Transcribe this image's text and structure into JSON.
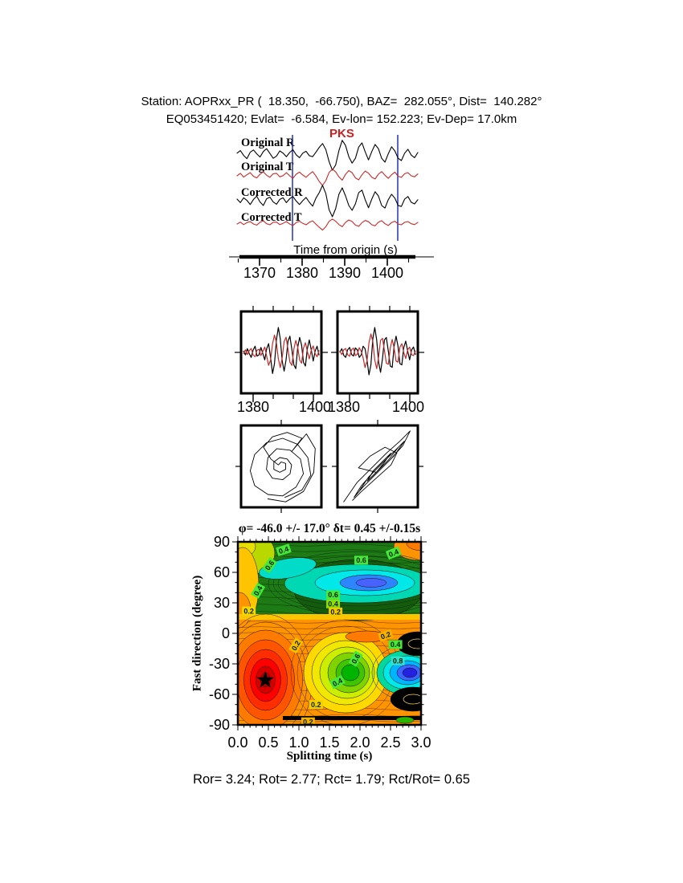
{
  "header": {
    "line1": "Station: AOPRxx_PR (  18.350,  -66.750), BAZ=  282.055°, Dist=  140.282°",
    "line2": "EQ053451420; Evlat=  -6.584, Ev-lon= 152.223; Ev-Dep= 17.0km"
  },
  "footer": {
    "text": "Ror= 3.24; Rot= 2.77; Rct= 1.79; Rct/Rot= 0.65"
  },
  "colors": {
    "trace_red": "#c62b2b",
    "trace_black": "#000000",
    "window_line_blue": "#2233bb",
    "phase_red": "#cc2020",
    "surface_orange": "#ff9400",
    "surface_green": "#1e7a14",
    "surface_cyan": "#00d8b4",
    "surface_blue": "#4762ff",
    "surface_red": "#e00000"
  },
  "chart_data": {
    "type": "multi-panel-seismic-splitting",
    "waveform_panel": {
      "phase_label": "PKS",
      "time_axis": {
        "label": "Time from origin (s)",
        "ticks": [
          1370,
          1380,
          1390,
          1400
        ],
        "minor_step": 5,
        "range": [
          1365,
          1408
        ]
      },
      "window_start_s": 1378,
      "window_end_s": 1402.5,
      "traces": [
        {
          "label": "Original R",
          "color": "#000000",
          "amp": 20,
          "values": [
            0.06,
            0.22,
            -0.08,
            -0.28,
            0.12,
            0.26,
            0.02,
            -0.18,
            0.16,
            0.34,
            0.04,
            -0.26,
            -0.12,
            0.2,
            0.06,
            -0.16,
            0.1,
            0.28,
            -0.04,
            -0.22,
            0.06,
            0.18,
            -0.1,
            -0.16,
            0.12,
            0.42,
            0.66,
            0.28,
            -0.46,
            -1.0,
            -0.68,
            0.22,
            0.86,
            0.54,
            -0.16,
            -0.56,
            -0.26,
            0.44,
            0.7,
            0.14,
            -0.36,
            0.16,
            0.6,
            0.34,
            -0.26,
            -0.5,
            0.02,
            0.46,
            0.2,
            -0.26,
            -0.4,
            0.06,
            0.3,
            -0.06,
            -0.22,
            0.1
          ]
        },
        {
          "label": "Original T",
          "color": "#c62b2b",
          "amp": 13,
          "values": [
            -0.08,
            0.16,
            -0.2,
            0.02,
            0.22,
            -0.12,
            -0.28,
            0.08,
            0.3,
            -0.02,
            -0.22,
            0.12,
            0.16,
            -0.18,
            -0.06,
            0.22,
            -0.08,
            -0.32,
            0.08,
            0.28,
            0.0,
            -0.22,
            0.08,
            0.32,
            -0.1,
            -0.62,
            -1.0,
            -0.54,
            0.24,
            0.56,
            0.3,
            -0.18,
            -0.5,
            0.06,
            0.42,
            0.22,
            -0.28,
            -0.46,
            0.02,
            0.38,
            0.18,
            -0.22,
            -0.38,
            0.08,
            0.32,
            -0.02,
            -0.32,
            0.02,
            0.28,
            -0.12,
            -0.22,
            0.12,
            0.22,
            -0.08,
            -0.18,
            0.1
          ]
        },
        {
          "label": "Corrected R",
          "color": "#000000",
          "amp": 20,
          "values": [
            0.1,
            -0.12,
            0.18,
            0.02,
            -0.24,
            0.08,
            0.28,
            -0.08,
            -0.3,
            0.12,
            0.22,
            -0.08,
            -0.22,
            0.08,
            0.18,
            -0.12,
            0.12,
            0.26,
            -0.02,
            -0.24,
            0.0,
            0.2,
            -0.1,
            -0.34,
            0.16,
            0.5,
            0.96,
            0.44,
            -0.56,
            -1.0,
            -0.5,
            0.4,
            0.8,
            0.3,
            -0.3,
            -0.6,
            -0.2,
            0.5,
            0.66,
            0.06,
            -0.44,
            0.1,
            0.56,
            0.3,
            -0.3,
            -0.46,
            0.06,
            0.4,
            0.16,
            -0.3,
            -0.36,
            0.1,
            0.26,
            -0.1,
            -0.2,
            0.06
          ]
        },
        {
          "label": "Corrected T",
          "color": "#c62b2b",
          "amp": 11,
          "values": [
            -0.1,
            0.12,
            -0.16,
            0.06,
            0.18,
            -0.1,
            -0.22,
            0.1,
            0.26,
            -0.06,
            -0.18,
            0.1,
            0.12,
            -0.16,
            -0.02,
            0.18,
            -0.1,
            -0.26,
            0.06,
            0.22,
            -0.02,
            -0.18,
            0.1,
            0.26,
            -0.12,
            -0.46,
            -0.78,
            -0.4,
            0.2,
            0.46,
            0.22,
            -0.16,
            -0.4,
            0.08,
            0.36,
            0.18,
            -0.22,
            -0.36,
            0.06,
            0.3,
            0.16,
            -0.18,
            -0.3,
            0.1,
            0.28,
            -0.06,
            -0.26,
            0.06,
            0.22,
            -0.1,
            -0.18,
            0.1,
            0.18,
            -0.06,
            -0.16,
            0.08
          ]
        }
      ]
    },
    "comparison_panels": {
      "xtick_labels": [
        "1380",
        "1400"
      ],
      "panels": [
        {
          "series": [
            {
              "color": "#000000",
              "amp": 31,
              "values": [
                0.05,
                -0.1,
                0.15,
                -0.05,
                -0.2,
                0.1,
                0.25,
                -0.15,
                -0.1,
                0.2,
                -0.05,
                -0.3,
                0.15,
                0.35,
                -0.2,
                -0.85,
                -0.45,
                0.5,
                1.0,
                0.55,
                -0.35,
                -0.75,
                -0.3,
                0.45,
                0.65,
                0.1,
                -0.5,
                -0.65,
                0.2,
                0.6,
                0.3,
                -0.4,
                -0.55,
                0.15,
                0.5,
                0.1,
                -0.35,
                0.05,
                0.25,
                -0.1
              ]
            },
            {
              "color": "#c62b2b",
              "amp": 27,
              "values": [
                -0.05,
                0.12,
                -0.1,
                0.08,
                0.18,
                -0.12,
                -0.2,
                0.1,
                0.15,
                -0.15,
                0.05,
                0.25,
                -0.18,
                -0.6,
                -0.35,
                0.4,
                0.8,
                0.45,
                -0.3,
                -0.7,
                -0.25,
                0.5,
                0.7,
                0.15,
                -0.45,
                -0.6,
                0.15,
                0.55,
                0.25,
                -0.35,
                -0.5,
                0.2,
                0.45,
                0.05,
                -0.3,
                0.1,
                0.3,
                -0.05,
                -0.2,
                0.08
              ]
            }
          ]
        },
        {
          "series": [
            {
              "color": "#000000",
              "amp": 31,
              "values": [
                0.02,
                0.15,
                -0.12,
                -0.2,
                0.1,
                0.2,
                -0.08,
                -0.15,
                0.18,
                0.1,
                -0.2,
                -0.1,
                0.25,
                0.15,
                -0.3,
                -0.9,
                -0.5,
                0.55,
                1.0,
                0.5,
                -0.4,
                -0.8,
                -0.25,
                0.5,
                0.6,
                0.05,
                -0.55,
                -0.6,
                0.25,
                0.65,
                0.25,
                -0.45,
                -0.5,
                0.2,
                0.45,
                0.05,
                -0.3,
                0.1,
                0.22,
                -0.08
              ]
            },
            {
              "color": "#c62b2b",
              "amp": 27,
              "values": [
                0.05,
                -0.1,
                0.12,
                0.18,
                -0.1,
                -0.18,
                0.12,
                0.2,
                -0.15,
                -0.08,
                0.22,
                0.05,
                -0.25,
                -0.7,
                -0.4,
                0.45,
                0.85,
                0.5,
                -0.35,
                -0.75,
                -0.2,
                0.55,
                0.65,
                0.1,
                -0.5,
                -0.55,
                0.2,
                0.6,
                0.2,
                -0.4,
                -0.45,
                0.25,
                0.4,
                0.0,
                -0.28,
                0.12,
                0.25,
                -0.1,
                -0.15,
                0.06
              ]
            }
          ]
        }
      ]
    },
    "particle_motion_panels": [
      {
        "path": [
          [
            5,
            -42
          ],
          [
            28,
            -32
          ],
          [
            40,
            -12
          ],
          [
            36,
            12
          ],
          [
            22,
            30
          ],
          [
            2,
            38
          ],
          [
            -20,
            32
          ],
          [
            -36,
            16
          ],
          [
            -42,
            -6
          ],
          [
            -36,
            -26
          ],
          [
            -18,
            -38
          ],
          [
            2,
            -40
          ],
          [
            20,
            -28
          ],
          [
            30,
            -10
          ],
          [
            26,
            10
          ],
          [
            12,
            22
          ],
          [
            -6,
            24
          ],
          [
            -18,
            12
          ],
          [
            -20,
            -4
          ],
          [
            -12,
            -16
          ],
          [
            2,
            -18
          ],
          [
            12,
            -10
          ],
          [
            14,
            2
          ],
          [
            8,
            10
          ],
          [
            -2,
            12
          ],
          [
            -10,
            6
          ],
          [
            -10,
            -4
          ],
          [
            -2,
            -8
          ],
          [
            6,
            -4
          ],
          [
            6,
            4
          ],
          [
            0,
            6
          ],
          [
            -4,
            2
          ],
          [
            -14,
            10
          ],
          [
            -24,
            26
          ],
          [
            -12,
            40
          ],
          [
            8,
            46
          ],
          [
            28,
            38
          ],
          [
            14,
            20
          ],
          [
            34,
            44
          ],
          [
            46,
            24
          ],
          [
            44,
            -8
          ],
          [
            30,
            -34
          ],
          [
            6,
            -48
          ],
          [
            -18,
            -44
          ]
        ]
      },
      {
        "path": [
          [
            -46,
            -48
          ],
          [
            -28,
            -22
          ],
          [
            -8,
            -2
          ],
          [
            12,
            18
          ],
          [
            30,
            34
          ],
          [
            44,
            48
          ],
          [
            34,
            28
          ],
          [
            16,
            8
          ],
          [
            -4,
            -12
          ],
          [
            -20,
            -28
          ],
          [
            -32,
            -42
          ],
          [
            -22,
            -26
          ],
          [
            -6,
            -8
          ],
          [
            10,
            8
          ],
          [
            24,
            22
          ],
          [
            36,
            34
          ],
          [
            22,
            14
          ],
          [
            6,
            -2
          ],
          [
            -10,
            -18
          ],
          [
            -24,
            -32
          ],
          [
            -12,
            -14
          ],
          [
            2,
            0
          ],
          [
            16,
            14
          ],
          [
            28,
            26
          ],
          [
            14,
            8
          ],
          [
            0,
            -6
          ],
          [
            -14,
            -20
          ],
          [
            -6,
            -6
          ],
          [
            6,
            6
          ],
          [
            18,
            18
          ],
          [
            8,
            4
          ],
          [
            -2,
            -8
          ],
          [
            -26,
            -2
          ],
          [
            -10,
            14
          ],
          [
            10,
            26
          ],
          [
            26,
            18
          ],
          [
            18,
            2
          ],
          [
            -2,
            -16
          ],
          [
            -22,
            -34
          ],
          [
            -34,
            -46
          ]
        ]
      }
    ],
    "error_surface": {
      "title": "φ= -46.0 +/- 17.0° δt= 0.45 +/-0.15s",
      "xlabel": "Splitting time (s)",
      "ylabel": "Fast direction (degree)",
      "xlim": [
        0,
        3
      ],
      "ylim": [
        -90,
        90
      ],
      "xticks": [
        0.0,
        0.5,
        1.0,
        1.5,
        2.0,
        2.5,
        3.0
      ],
      "yticks": [
        90,
        60,
        30,
        0,
        -30,
        -60,
        -90
      ],
      "best": {
        "phi_deg": -46.0,
        "phi_err_deg": 17.0,
        "dt_s": 0.45,
        "dt_err_s": 0.15
      },
      "star": {
        "t": 0.45,
        "deg": -46
      },
      "minima": [
        {
          "t": 0.45,
          "deg": -46,
          "kind": "best-fit (red, starred)"
        },
        {
          "t": 2.1,
          "deg": 52,
          "kind": "secondary (blue)"
        },
        {
          "t": 2.75,
          "deg": -38,
          "kind": "secondary (blue)"
        }
      ],
      "contour_labels": [
        {
          "v": "0.4",
          "t": 0.75,
          "deg": 82,
          "rot": -18,
          "bg": "#46e83c"
        },
        {
          "v": "0.6",
          "t": 0.52,
          "deg": 67,
          "rot": -55,
          "bg": "#46e83c"
        },
        {
          "v": "0.6",
          "t": 2.02,
          "deg": 72,
          "rot": 0,
          "bg": "#46e83c"
        },
        {
          "v": "0.4",
          "t": 2.55,
          "deg": 79,
          "rot": -22,
          "bg": "#46e83c"
        },
        {
          "v": "0.4",
          "t": 0.33,
          "deg": 42,
          "rot": -60,
          "bg": "#46e83c"
        },
        {
          "v": "0.2",
          "t": 0.18,
          "deg": 22,
          "rot": 0,
          "bg": "#f0d800"
        },
        {
          "v": "0.6",
          "t": 1.56,
          "deg": 38,
          "rot": 0,
          "bg": "#46e83c"
        },
        {
          "v": "0.4",
          "t": 1.56,
          "deg": 29,
          "rot": 0,
          "bg": "#8ae000"
        },
        {
          "v": "0.2",
          "t": 1.6,
          "deg": 21,
          "rot": 0,
          "bg": "#f0c800"
        },
        {
          "v": "0.2",
          "t": 2.42,
          "deg": -2,
          "rot": -20,
          "bg": "#f5b000"
        },
        {
          "v": "0.4",
          "t": 2.58,
          "deg": -11,
          "rot": 0,
          "bg": "#46e83c"
        },
        {
          "v": "0.8",
          "t": 2.62,
          "deg": -27,
          "rot": 0,
          "bg": "#35e0d0"
        },
        {
          "v": "0.2",
          "t": 0.95,
          "deg": -12,
          "rot": -60,
          "bg": "#f5c000"
        },
        {
          "v": "0.6",
          "t": 1.93,
          "deg": -25,
          "rot": -60,
          "bg": "#46e83c"
        },
        {
          "v": "0.4",
          "t": 1.63,
          "deg": -48,
          "rot": -28,
          "bg": "#46e83c"
        },
        {
          "v": "0.2",
          "t": 1.28,
          "deg": -70,
          "rot": 0,
          "bg": "#f0d000"
        },
        {
          "v": "0.2",
          "t": 1.15,
          "deg": -87,
          "rot": 0,
          "bg": "#f5b000"
        }
      ]
    }
  }
}
